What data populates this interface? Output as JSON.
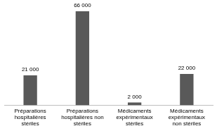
{
  "chart_data": {
    "type": "bar",
    "categories": [
      "Préparations hospitalières stériles",
      "Préparations hospitalières non stériles",
      "Médicaments expérimentaux stériles",
      "Médicaments expérimentaux non stériles"
    ],
    "values": [
      21000,
      66000,
      2000,
      22000
    ],
    "value_labels": [
      "21 000",
      "66 000",
      "2 000",
      "22 000"
    ],
    "color": "#595959",
    "ylim": [
      0,
      66000
    ],
    "grid": false,
    "data_labels": true,
    "tick_labels": "x"
  }
}
